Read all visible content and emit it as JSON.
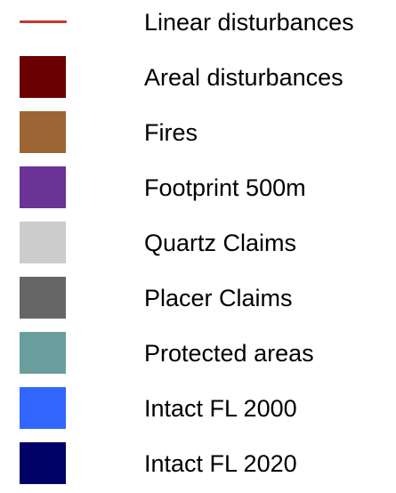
{
  "legend": {
    "items": [
      {
        "name": "linear-disturbances",
        "label": "Linear disturbances",
        "kind": "line",
        "color": "#c0392b"
      },
      {
        "name": "areal-disturbances",
        "label": "Areal disturbances",
        "kind": "fill",
        "color": "#6b0000"
      },
      {
        "name": "fires",
        "label": "Fires",
        "kind": "fill",
        "color": "#9b6534"
      },
      {
        "name": "footprint-500m",
        "label": "Footprint 500m",
        "kind": "fill",
        "color": "#6a3395"
      },
      {
        "name": "quartz-claims",
        "label": "Quartz Claims",
        "kind": "fill",
        "color": "#cccccc"
      },
      {
        "name": "placer-claims",
        "label": "Placer Claims",
        "kind": "fill",
        "color": "#666666"
      },
      {
        "name": "protected-areas",
        "label": "Protected areas",
        "kind": "fill",
        "color": "#6a9e9c"
      },
      {
        "name": "intact-fl-2000",
        "label": "Intact FL 2000",
        "kind": "fill",
        "color": "#3366ff"
      },
      {
        "name": "intact-fl-2020",
        "label": "Intact FL 2020",
        "kind": "fill",
        "color": "#000066"
      }
    ]
  }
}
